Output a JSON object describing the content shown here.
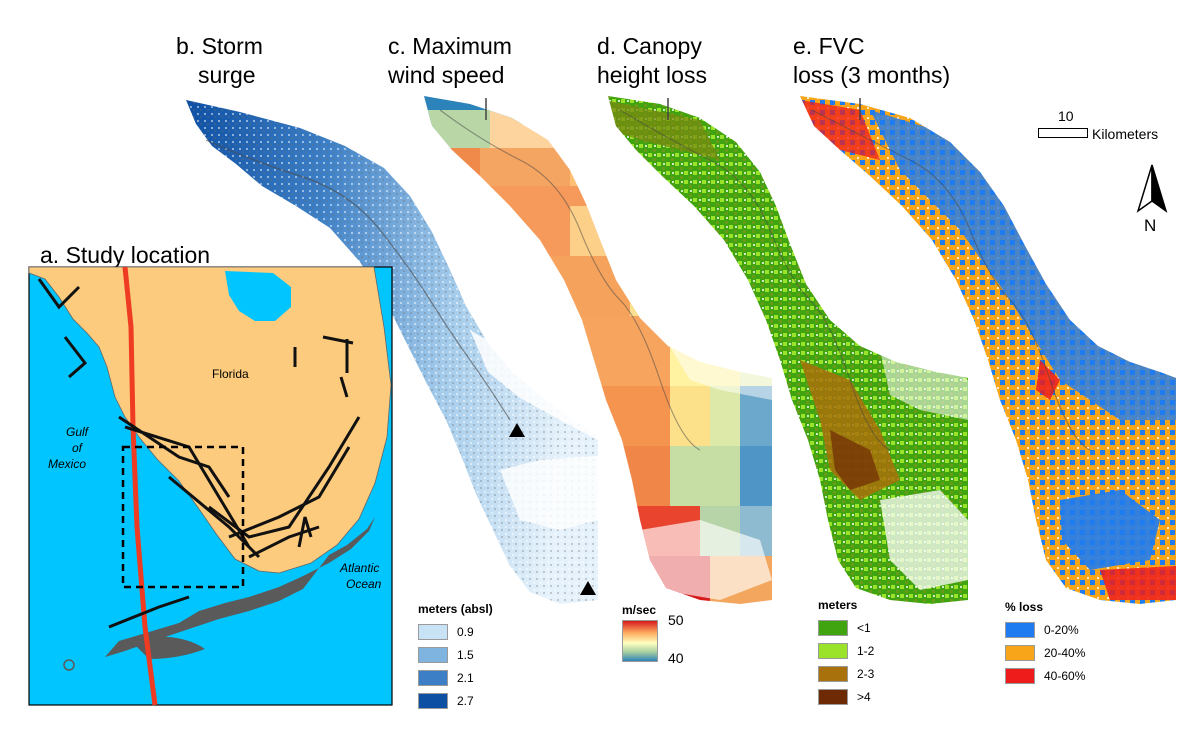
{
  "panels": {
    "a": {
      "title": "a. Study location"
    },
    "b": {
      "title_line1": "b. Storm",
      "title_line2": "surge"
    },
    "c": {
      "title_line1": "c. Maximum",
      "title_line2": "wind speed"
    },
    "d": {
      "title_line1": "d. Canopy",
      "title_line2": "height loss"
    },
    "e": {
      "title_line1": "e. FVC",
      "title_line2": "loss (3 months)"
    }
  },
  "study_map": {
    "labels": {
      "florida": "Florida",
      "gulf_line1": "Gulf",
      "gulf_line2": "of",
      "gulf_line3": "Mexico",
      "atlantic_line1": "Atlantic",
      "atlantic_line2": "Ocean"
    },
    "colors": {
      "ocean": "#00c5ff",
      "land": "#fccb7d",
      "track": "#ee3b22",
      "flight_lines": "#111111",
      "mangrove": "#5a5a5a"
    }
  },
  "scale_bar": {
    "value": "10",
    "unit": "Kilometers"
  },
  "north_arrow": {
    "label": "N"
  },
  "legends": {
    "surge": {
      "title": "meters (absl)",
      "items": [
        {
          "label": "0.9",
          "color": "#c8e3f5"
        },
        {
          "label": "1.5",
          "color": "#7fb3e0"
        },
        {
          "label": "2.1",
          "color": "#3c7fc6"
        },
        {
          "label": "2.7",
          "color": "#0d4fa3"
        }
      ]
    },
    "wind": {
      "title": "m/sec",
      "max_label": "50",
      "min_label": "40",
      "gradient": [
        "#d7191c",
        "#fdae61",
        "#ffffbf",
        "#a6cea0",
        "#2b83ba"
      ]
    },
    "canopy": {
      "title": "meters",
      "items": [
        {
          "label": "<1",
          "color": "#3fa40f"
        },
        {
          "label": "1-2",
          "color": "#9be22a"
        },
        {
          "label": "2-3",
          "color": "#a9710b"
        },
        {
          "label": ">4",
          "color": "#6e2a05"
        }
      ]
    },
    "fvc": {
      "title": "% loss",
      "items": [
        {
          "label": "0-20%",
          "color": "#1e7cf0"
        },
        {
          "label": "20-40%",
          "color": "#f9a51a"
        },
        {
          "label": "40-60%",
          "color": "#ef1c1c"
        }
      ]
    }
  }
}
